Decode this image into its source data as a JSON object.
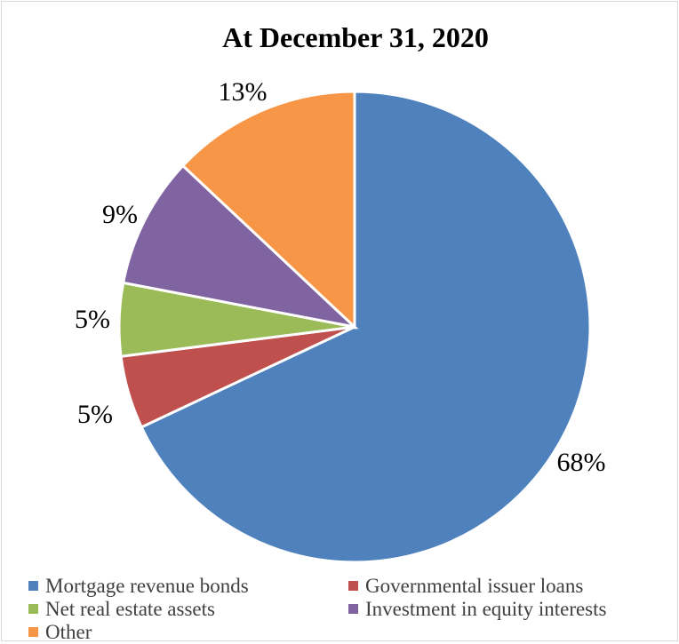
{
  "chart_data": {
    "type": "pie",
    "title": "At December 31, 2020",
    "slices": [
      {
        "label": "Mortgage revenue bonds",
        "value": 68,
        "value_label": "68%",
        "color": "#4f81bd"
      },
      {
        "label": "Governmental issuer loans",
        "value": 5,
        "value_label": "5%",
        "color": "#c0504d"
      },
      {
        "label": "Net real estate assets",
        "value": 5,
        "value_label": "5%",
        "color": "#9bbb59"
      },
      {
        "label": "Investment in equity interests",
        "value": 9,
        "value_label": "9%",
        "color": "#8064a2"
      },
      {
        "label": "Other",
        "value": 13,
        "value_label": "13%",
        "color": "#f79646"
      }
    ],
    "legend": "bottom"
  }
}
